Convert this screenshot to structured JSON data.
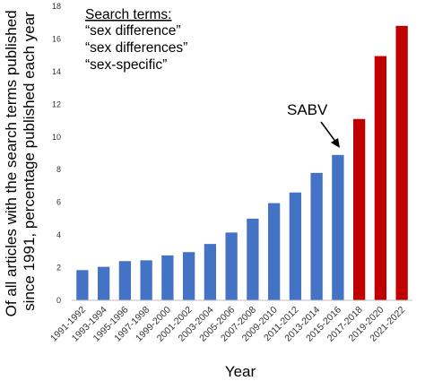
{
  "chart_data": {
    "type": "bar",
    "categories": [
      "1991-1992",
      "1993-1994",
      "1995-1996",
      "1997-1998",
      "1999-2000",
      "2001-2002",
      "2003-2004",
      "2005-2006",
      "2007-2008",
      "2009-2010",
      "2011-2012",
      "2013-2014",
      "2015-2016",
      "2017-2018",
      "2019-2020",
      "2021-2022"
    ],
    "values": [
      1.85,
      2.05,
      2.4,
      2.45,
      2.75,
      2.95,
      3.45,
      4.15,
      5.0,
      5.95,
      6.6,
      7.8,
      8.9,
      11.1,
      14.95,
      16.8
    ],
    "bar_colors": [
      "#4472C4",
      "#4472C4",
      "#4472C4",
      "#4472C4",
      "#4472C4",
      "#4472C4",
      "#4472C4",
      "#4472C4",
      "#4472C4",
      "#4472C4",
      "#4472C4",
      "#4472C4",
      "#4472C4",
      "#C00000",
      "#C00000",
      "#C00000"
    ],
    "xlabel": "Year",
    "ylabel_lines": [
      "Of all articles with the search terms published",
      "since 1991, percentage published each year"
    ],
    "ylim": [
      0,
      18
    ],
    "yticks": [
      0,
      2,
      4,
      6,
      8,
      10,
      12,
      14,
      16,
      18
    ],
    "grid": false,
    "legend": {
      "title": "Search terms:",
      "items": [
        "“sex difference”",
        "“sex differences”",
        "“sex-specific”"
      ],
      "placement": "top-left"
    },
    "annotation": {
      "text": "SABV",
      "target_category": "2015-2016"
    }
  },
  "colors": {
    "blue_bars": "#4472C4",
    "red_bars": "#C00000",
    "axis": "#BFBFBF"
  }
}
